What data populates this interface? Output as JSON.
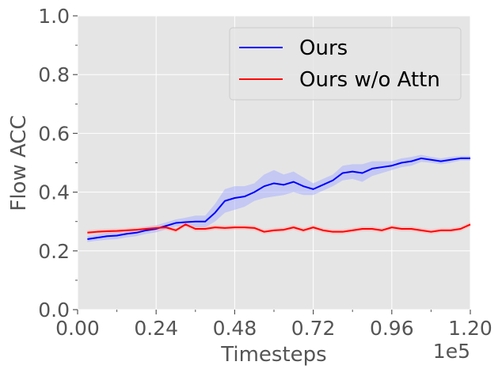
{
  "chart_data": {
    "type": "line",
    "title": "",
    "xlabel": "Timesteps",
    "ylabel": "Flow ACC",
    "x_offset_label": "1e5",
    "xlim": [
      0,
      120000
    ],
    "ylim": [
      0.0,
      1.0
    ],
    "x_ticks": [
      0,
      24000,
      48000,
      72000,
      96000,
      120000
    ],
    "x_tick_labels": [
      "0.00",
      "0.24",
      "0.48",
      "0.72",
      "0.96",
      "1.20"
    ],
    "y_ticks": [
      0.0,
      0.2,
      0.4,
      0.6,
      0.8,
      1.0
    ],
    "y_tick_labels": [
      "0.0",
      "0.2",
      "0.4",
      "0.6",
      "0.8",
      "1.0"
    ],
    "grid": true,
    "legend_position": "top-right",
    "colors": {
      "background": "#e5e5e5",
      "grid": "#ffffff"
    },
    "series": [
      {
        "name": "Ours",
        "color": "#0000ff",
        "band_color": "#aab0ff",
        "x": [
          3000,
          6000,
          9000,
          12000,
          15000,
          18000,
          21000,
          24000,
          27000,
          30000,
          33000,
          36000,
          39000,
          42000,
          45000,
          48000,
          51000,
          54000,
          57000,
          60000,
          63000,
          66000,
          69000,
          72000,
          75000,
          78000,
          81000,
          84000,
          87000,
          90000,
          93000,
          96000,
          99000,
          102000,
          105000,
          108000,
          111000,
          114000,
          117000,
          120000
        ],
        "y": [
          0.24,
          0.245,
          0.25,
          0.252,
          0.258,
          0.262,
          0.27,
          0.275,
          0.285,
          0.295,
          0.298,
          0.3,
          0.3,
          0.33,
          0.37,
          0.38,
          0.385,
          0.4,
          0.42,
          0.43,
          0.425,
          0.435,
          0.42,
          0.41,
          0.425,
          0.44,
          0.465,
          0.47,
          0.465,
          0.48,
          0.485,
          0.49,
          0.5,
          0.505,
          0.515,
          0.51,
          0.505,
          0.51,
          0.515,
          0.515
        ],
        "band": [
          0.01,
          0.01,
          0.012,
          0.012,
          0.012,
          0.012,
          0.012,
          0.012,
          0.012,
          0.012,
          0.015,
          0.02,
          0.02,
          0.03,
          0.04,
          0.04,
          0.035,
          0.03,
          0.04,
          0.045,
          0.035,
          0.035,
          0.03,
          0.02,
          0.02,
          0.02,
          0.025,
          0.025,
          0.03,
          0.025,
          0.02,
          0.015,
          0.015,
          0.015,
          0.012,
          0.01,
          0.01,
          0.01,
          0.008,
          0.008
        ]
      },
      {
        "name": "Ours w/o Attn",
        "color": "#ff0000",
        "band_color": "#ffb0b0",
        "x": [
          3000,
          6000,
          9000,
          12000,
          15000,
          18000,
          21000,
          24000,
          27000,
          30000,
          33000,
          36000,
          39000,
          42000,
          45000,
          48000,
          51000,
          54000,
          57000,
          60000,
          63000,
          66000,
          69000,
          72000,
          75000,
          78000,
          81000,
          84000,
          87000,
          90000,
          93000,
          96000,
          99000,
          102000,
          105000,
          108000,
          111000,
          114000,
          117000,
          120000
        ],
        "y": [
          0.262,
          0.265,
          0.267,
          0.268,
          0.27,
          0.272,
          0.275,
          0.278,
          0.28,
          0.27,
          0.29,
          0.275,
          0.275,
          0.28,
          0.278,
          0.28,
          0.28,
          0.278,
          0.265,
          0.27,
          0.272,
          0.28,
          0.27,
          0.28,
          0.27,
          0.265,
          0.265,
          0.27,
          0.275,
          0.275,
          0.27,
          0.28,
          0.275,
          0.275,
          0.27,
          0.265,
          0.27,
          0.27,
          0.275,
          0.29
        ]
      }
    ]
  }
}
